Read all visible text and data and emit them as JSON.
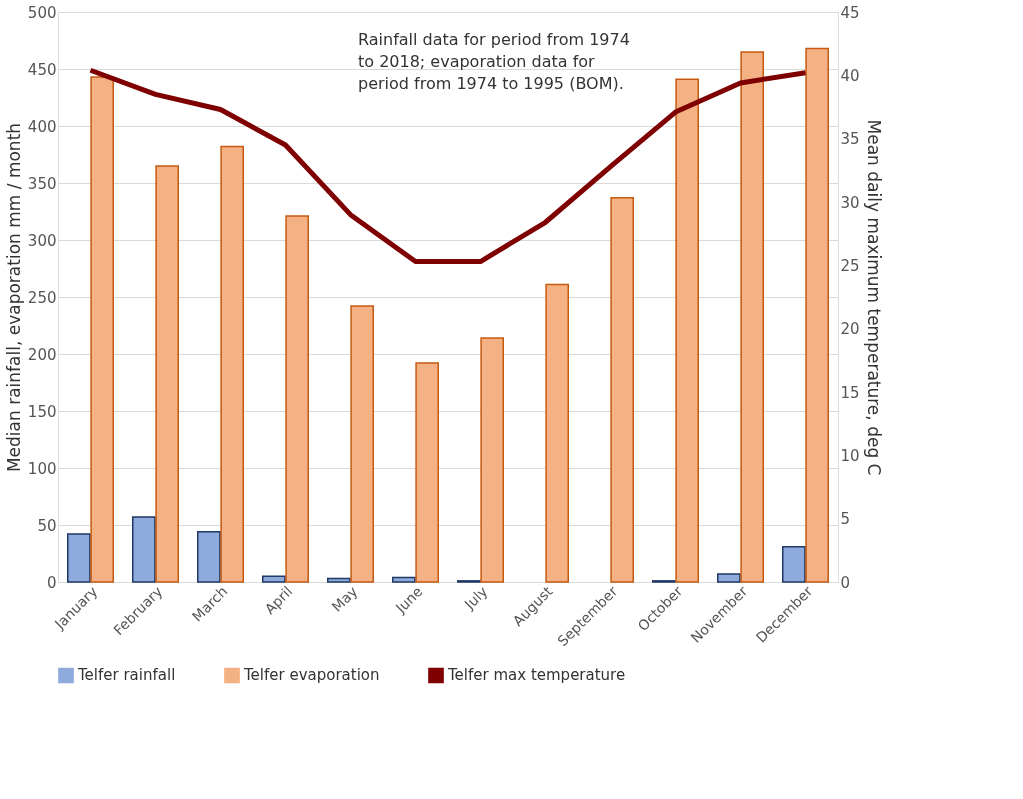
{
  "chart_data": {
    "type": "bar",
    "categories": [
      "January",
      "February",
      "March",
      "April",
      "May",
      "June",
      "July",
      "August",
      "September",
      "October",
      "November",
      "December"
    ],
    "series": [
      {
        "name": "Telfer rainfall",
        "color": "#8faadc",
        "values": [
          42,
          57,
          44,
          5,
          3,
          4,
          1,
          0,
          0,
          1,
          7,
          31
        ]
      },
      {
        "name": "Telfer evaporation",
        "color": "#f4b183",
        "values": [
          443,
          365,
          382,
          321,
          242,
          192,
          214,
          261,
          337,
          441,
          465,
          468
        ]
      },
      {
        "name": "Telfer max temperature",
        "type": "line",
        "axis": "y2",
        "color": "#7f0000",
        "values": [
          40.4,
          38.5,
          37.3,
          34.5,
          29.0,
          25.3,
          25.3,
          28.4,
          32.8,
          37.1,
          39.4,
          40.2
        ]
      }
    ],
    "ylabel": "Median rainfall, evaporation mm / month",
    "y2label": "Mean daily maximum temperature, deg C",
    "ylim": [
      0,
      500
    ],
    "yticks": [
      0,
      50,
      100,
      150,
      200,
      250,
      300,
      350,
      400,
      450,
      500
    ],
    "y2lim": [
      0,
      45
    ],
    "y2ticks": [
      0,
      5,
      10,
      15,
      20,
      25,
      30,
      35,
      40,
      45
    ],
    "annotations": [
      "Rainfall data for period from 1974 to 2018; evaporation data for period from 1974 to 1995 (BOM)."
    ],
    "grid": "y",
    "legend": "bottom"
  }
}
